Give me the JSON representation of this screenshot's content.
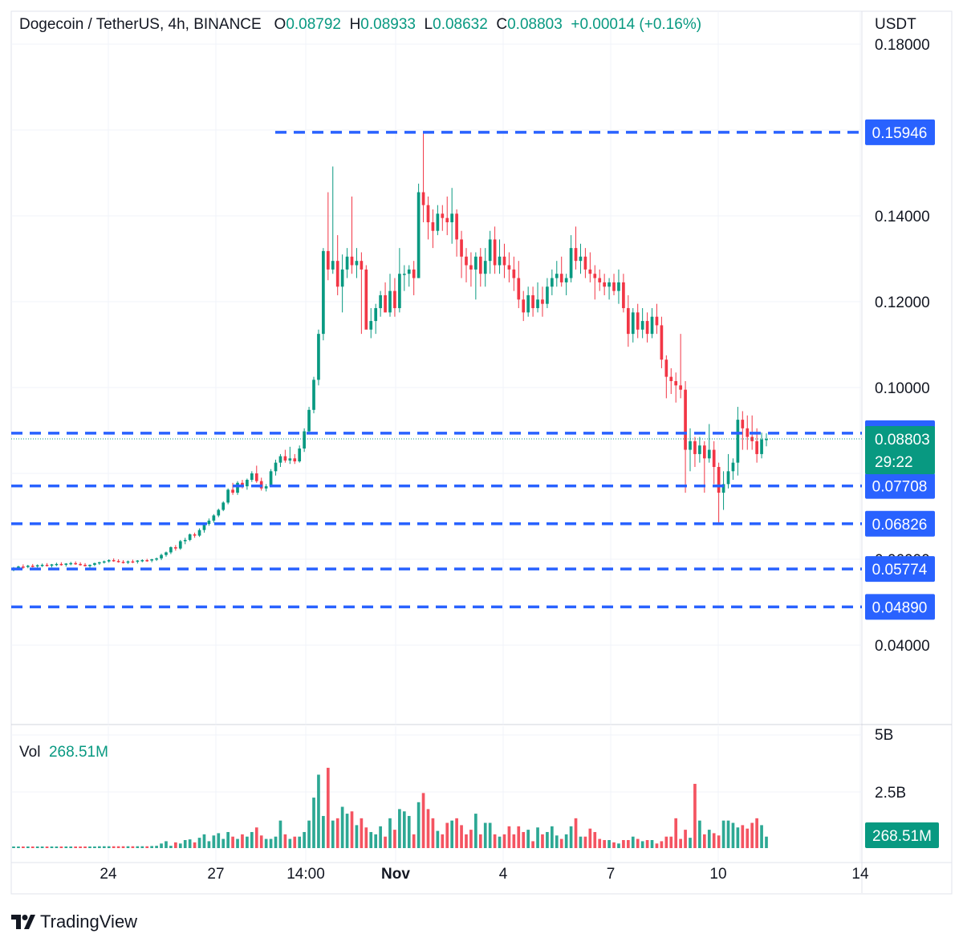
{
  "header": {
    "symbol": "Dogecoin / TetherUS, 4h, BINANCE",
    "o_label": "O",
    "o_value": "0.08792",
    "h_label": "H",
    "h_value": "0.08933",
    "l_label": "L",
    "l_value": "0.08632",
    "c_label": "C",
    "c_value": "0.08803",
    "change": "+0.00014 (+0.16%)"
  },
  "currency": "USDT",
  "volume": {
    "label": "Vol",
    "value": "268.51M",
    "badge": "268.51M"
  },
  "branding": {
    "name": "TradingView"
  },
  "colors": {
    "up": "#089981",
    "down": "#f23645",
    "level_line": "#2962ff",
    "grid": "#f0f3fa"
  },
  "chart_data": {
    "type": "candlestick",
    "interval": "4h",
    "ylim": [
      0.03,
      0.182
    ],
    "y_ticks": [
      "0.18000",
      "0.14000",
      "0.12000",
      "0.10000",
      "0.04000"
    ],
    "x_ticks": [
      "24",
      "27",
      "14:00",
      "Nov",
      "4",
      "7",
      "10",
      "14"
    ],
    "levels": [
      "0.15946",
      "0.08937",
      "0.07708",
      "0.06826",
      "0.05774",
      "0.04890"
    ],
    "current_price": "0.08803",
    "countdown": "29:22",
    "volume_ticks": [
      "5B",
      "2.5B"
    ],
    "volume_max": 5000000000,
    "candles": [
      [
        0.0575,
        0.0582,
        0.0572,
        0.058
      ],
      [
        0.058,
        0.0585,
        0.0577,
        0.0583
      ],
      [
        0.0583,
        0.0588,
        0.0578,
        0.0582
      ],
      [
        0.0582,
        0.0587,
        0.0579,
        0.0585
      ],
      [
        0.0585,
        0.0589,
        0.0581,
        0.0584
      ],
      [
        0.0584,
        0.0588,
        0.058,
        0.0586
      ],
      [
        0.0586,
        0.059,
        0.0582,
        0.0587
      ],
      [
        0.0587,
        0.0591,
        0.0583,
        0.0585
      ],
      [
        0.0585,
        0.0589,
        0.0581,
        0.0588
      ],
      [
        0.0588,
        0.0592,
        0.0584,
        0.0589
      ],
      [
        0.0589,
        0.0593,
        0.0585,
        0.0587
      ],
      [
        0.0587,
        0.0591,
        0.0583,
        0.059
      ],
      [
        0.059,
        0.0594,
        0.0586,
        0.0591
      ],
      [
        0.0591,
        0.0595,
        0.0587,
        0.0589
      ],
      [
        0.0589,
        0.0593,
        0.0585,
        0.0587
      ],
      [
        0.0587,
        0.0591,
        0.0583,
        0.0584
      ],
      [
        0.0584,
        0.0588,
        0.058,
        0.0587
      ],
      [
        0.0587,
        0.0592,
        0.0584,
        0.0591
      ],
      [
        0.0591,
        0.0594,
        0.0587,
        0.0593
      ],
      [
        0.0593,
        0.0597,
        0.059,
        0.0595
      ],
      [
        0.0595,
        0.06,
        0.0592,
        0.0598
      ],
      [
        0.0598,
        0.0602,
        0.0594,
        0.0596
      ],
      [
        0.0596,
        0.06,
        0.0592,
        0.0594
      ],
      [
        0.0594,
        0.0598,
        0.059,
        0.0592
      ],
      [
        0.0592,
        0.0597,
        0.0589,
        0.0595
      ],
      [
        0.0595,
        0.0599,
        0.0591,
        0.0594
      ],
      [
        0.0594,
        0.0598,
        0.059,
        0.0597
      ],
      [
        0.0597,
        0.06,
        0.0593,
        0.0598
      ],
      [
        0.0598,
        0.0601,
        0.0594,
        0.0597
      ],
      [
        0.0597,
        0.0601,
        0.0593,
        0.06
      ],
      [
        0.06,
        0.0604,
        0.0596,
        0.0602
      ],
      [
        0.0602,
        0.0613,
        0.0598,
        0.061
      ],
      [
        0.061,
        0.0618,
        0.0606,
        0.0616
      ],
      [
        0.0616,
        0.063,
        0.0612,
        0.0628
      ],
      [
        0.0628,
        0.0633,
        0.062,
        0.0625
      ],
      [
        0.0625,
        0.0645,
        0.0622,
        0.0642
      ],
      [
        0.0642,
        0.065,
        0.0635,
        0.0645
      ],
      [
        0.0645,
        0.066,
        0.0642,
        0.0658
      ],
      [
        0.0658,
        0.0662,
        0.065,
        0.0655
      ],
      [
        0.0655,
        0.0672,
        0.0652,
        0.0668
      ],
      [
        0.0668,
        0.0685,
        0.0662,
        0.0682
      ],
      [
        0.0682,
        0.0695,
        0.0678,
        0.069
      ],
      [
        0.069,
        0.0705,
        0.0685,
        0.0702
      ],
      [
        0.0702,
        0.0718,
        0.0698,
        0.0715
      ],
      [
        0.0715,
        0.0735,
        0.0712,
        0.0732
      ],
      [
        0.0732,
        0.0765,
        0.0728,
        0.0762
      ],
      [
        0.0762,
        0.0778,
        0.075,
        0.0755
      ],
      [
        0.0755,
        0.0782,
        0.075,
        0.0778
      ],
      [
        0.0778,
        0.0785,
        0.0765,
        0.077
      ],
      [
        0.077,
        0.0788,
        0.0762,
        0.0785
      ],
      [
        0.0785,
        0.0805,
        0.078,
        0.08
      ],
      [
        0.08,
        0.0818,
        0.0778,
        0.0782
      ],
      [
        0.0782,
        0.079,
        0.076,
        0.0765
      ],
      [
        0.0765,
        0.0775,
        0.0758,
        0.077
      ],
      [
        0.077,
        0.081,
        0.0768,
        0.0805
      ],
      [
        0.0805,
        0.0832,
        0.0795,
        0.0825
      ],
      [
        0.0825,
        0.0845,
        0.0815,
        0.084
      ],
      [
        0.084,
        0.0855,
        0.0825,
        0.083
      ],
      [
        0.083,
        0.0862,
        0.0822,
        0.0835
      ],
      [
        0.0835,
        0.0845,
        0.0822,
        0.0828
      ],
      [
        0.0828,
        0.0865,
        0.0825,
        0.0858
      ],
      [
        0.0858,
        0.0905,
        0.085,
        0.0898
      ],
      [
        0.0898,
        0.0955,
        0.0895,
        0.0948
      ],
      [
        0.0948,
        0.1025,
        0.094,
        0.1018
      ],
      [
        0.1018,
        0.1135,
        0.1005,
        0.1125
      ],
      [
        0.1125,
        0.1325,
        0.111,
        0.1318
      ],
      [
        0.1318,
        0.1455,
        0.125,
        0.1275
      ],
      [
        0.1275,
        0.1515,
        0.1265,
        0.1295
      ],
      [
        0.1295,
        0.1355,
        0.1215,
        0.1235
      ],
      [
        0.1235,
        0.131,
        0.1175,
        0.1275
      ],
      [
        0.1275,
        0.1325,
        0.1255,
        0.1305
      ],
      [
        0.1305,
        0.1445,
        0.1265,
        0.1285
      ],
      [
        0.1285,
        0.1325,
        0.1255,
        0.1295
      ],
      [
        0.1295,
        0.1315,
        0.1125,
        0.1275
      ],
      [
        0.1275,
        0.1285,
        0.1145,
        0.1135
      ],
      [
        0.1135,
        0.1185,
        0.1115,
        0.1155
      ],
      [
        0.1155,
        0.1195,
        0.1125,
        0.1185
      ],
      [
        0.1185,
        0.1225,
        0.1165,
        0.1215
      ],
      [
        0.1215,
        0.1245,
        0.1175,
        0.1175
      ],
      [
        0.1175,
        0.1265,
        0.1165,
        0.1225
      ],
      [
        0.1225,
        0.1255,
        0.1165,
        0.1185
      ],
      [
        0.1185,
        0.1325,
        0.1175,
        0.1265
      ],
      [
        0.1265,
        0.1285,
        0.1225,
        0.1265
      ],
      [
        0.1265,
        0.1285,
        0.1235,
        0.1275
      ],
      [
        0.1275,
        0.1295,
        0.1215,
        0.1255
      ],
      [
        0.1255,
        0.1475,
        0.1255,
        0.1455
      ],
      [
        0.1455,
        0.1595,
        0.1385,
        0.1425
      ],
      [
        0.1425,
        0.1445,
        0.1345,
        0.1385
      ],
      [
        0.1385,
        0.1415,
        0.1325,
        0.1365
      ],
      [
        0.1365,
        0.1425,
        0.1355,
        0.1405
      ],
      [
        0.1405,
        0.1425,
        0.1365,
        0.1395
      ],
      [
        0.1395,
        0.1445,
        0.1355,
        0.1385
      ],
      [
        0.1385,
        0.1465,
        0.1335,
        0.1405
      ],
      [
        0.1405,
        0.1415,
        0.1305,
        0.1345
      ],
      [
        0.1345,
        0.1365,
        0.1255,
        0.1305
      ],
      [
        0.1305,
        0.1325,
        0.1245,
        0.1285
      ],
      [
        0.1285,
        0.1315,
        0.1235,
        0.1275
      ],
      [
        0.1275,
        0.1315,
        0.1205,
        0.1305
      ],
      [
        0.1305,
        0.1325,
        0.1235,
        0.1265
      ],
      [
        0.1265,
        0.1325,
        0.1235,
        0.1295
      ],
      [
        0.1295,
        0.1365,
        0.1265,
        0.1345
      ],
      [
        0.1345,
        0.1375,
        0.1265,
        0.1285
      ],
      [
        0.1285,
        0.1345,
        0.1265,
        0.1305
      ],
      [
        0.1305,
        0.1335,
        0.1255,
        0.1285
      ],
      [
        0.1285,
        0.1315,
        0.1245,
        0.1275
      ],
      [
        0.1275,
        0.1305,
        0.1225,
        0.1255
      ],
      [
        0.1255,
        0.1295,
        0.1185,
        0.1205
      ],
      [
        0.1205,
        0.1225,
        0.1155,
        0.1175
      ],
      [
        0.1175,
        0.1235,
        0.1165,
        0.1215
      ],
      [
        0.1215,
        0.1235,
        0.1165,
        0.1185
      ],
      [
        0.1185,
        0.1245,
        0.1175,
        0.1205
      ],
      [
        0.1205,
        0.1235,
        0.1165,
        0.1195
      ],
      [
        0.1195,
        0.1255,
        0.1185,
        0.1235
      ],
      [
        0.1235,
        0.1275,
        0.1215,
        0.1255
      ],
      [
        0.1255,
        0.1295,
        0.1235,
        0.1265
      ],
      [
        0.1265,
        0.1305,
        0.1235,
        0.1245
      ],
      [
        0.1245,
        0.1265,
        0.1215,
        0.1255
      ],
      [
        0.1255,
        0.1355,
        0.1245,
        0.1325
      ],
      [
        0.1325,
        0.1375,
        0.1275,
        0.1295
      ],
      [
        0.1295,
        0.1335,
        0.1265,
        0.1305
      ],
      [
        0.1305,
        0.1325,
        0.1255,
        0.1275
      ],
      [
        0.1275,
        0.1315,
        0.1245,
        0.1265
      ],
      [
        0.1265,
        0.1285,
        0.1205,
        0.1255
      ],
      [
        0.1255,
        0.1275,
        0.1225,
        0.1245
      ],
      [
        0.1245,
        0.1265,
        0.1215,
        0.1235
      ],
      [
        0.1235,
        0.1255,
        0.1205,
        0.1245
      ],
      [
        0.1245,
        0.1265,
        0.1215,
        0.1225
      ],
      [
        0.1225,
        0.1275,
        0.1195,
        0.1245
      ],
      [
        0.1245,
        0.1265,
        0.1175,
        0.1185
      ],
      [
        0.1185,
        0.1215,
        0.1095,
        0.1125
      ],
      [
        0.1125,
        0.1185,
        0.1105,
        0.1175
      ],
      [
        0.1175,
        0.1195,
        0.1115,
        0.1135
      ],
      [
        0.1135,
        0.1185,
        0.1115,
        0.1155
      ],
      [
        0.1155,
        0.1175,
        0.1105,
        0.1125
      ],
      [
        0.1125,
        0.1185,
        0.1115,
        0.1165
      ],
      [
        0.1165,
        0.1195,
        0.1125,
        0.1145
      ],
      [
        0.1145,
        0.1165,
        0.1045,
        0.1065
      ],
      [
        0.1065,
        0.1075,
        0.0975,
        0.1025
      ],
      [
        0.1025,
        0.1045,
        0.0985,
        0.1015
      ],
      [
        0.1015,
        0.1035,
        0.0965,
        0.1005
      ],
      [
        0.1005,
        0.1125,
        0.0975,
        0.0995
      ],
      [
        0.0995,
        0.1015,
        0.0755,
        0.0855
      ],
      [
        0.0855,
        0.0905,
        0.0805,
        0.0875
      ],
      [
        0.0875,
        0.0885,
        0.0815,
        0.0845
      ],
      [
        0.0845,
        0.0885,
        0.0825,
        0.0865
      ],
      [
        0.0865,
        0.0875,
        0.0755,
        0.0835
      ],
      [
        0.0835,
        0.0915,
        0.0825,
        0.0855
      ],
      [
        0.0855,
        0.0875,
        0.0775,
        0.0815
      ],
      [
        0.0815,
        0.0825,
        0.0685,
        0.0755
      ],
      [
        0.0755,
        0.0805,
        0.0715,
        0.0775
      ],
      [
        0.0775,
        0.0845,
        0.0765,
        0.0805
      ],
      [
        0.0805,
        0.0835,
        0.0785,
        0.0825
      ],
      [
        0.0825,
        0.0955,
        0.0795,
        0.0925
      ],
      [
        0.0925,
        0.0945,
        0.0855,
        0.0905
      ],
      [
        0.0905,
        0.0935,
        0.0855,
        0.0885
      ],
      [
        0.0885,
        0.0935,
        0.0855,
        0.0875
      ],
      [
        0.0875,
        0.0905,
        0.0825,
        0.0845
      ],
      [
        0.0845,
        0.0895,
        0.0835,
        0.0879
      ],
      [
        0.0879,
        0.08933,
        0.08632,
        0.08803
      ]
    ],
    "volumes": [
      70,
      70,
      70,
      70,
      70,
      70,
      70,
      70,
      70,
      70,
      70,
      70,
      70,
      70,
      70,
      70,
      70,
      70,
      80,
      80,
      80,
      80,
      80,
      80,
      80,
      80,
      80,
      80,
      80,
      90,
      100,
      200,
      300,
      100,
      250,
      200,
      350,
      380,
      250,
      450,
      600,
      300,
      550,
      650,
      400,
      700,
      500,
      400,
      600,
      500,
      700,
      900,
      550,
      400,
      400,
      500,
      1200,
      600,
      400,
      500,
      500,
      700,
      1200,
      2200,
      3200,
      1400,
      3500,
      1200,
      1300,
      1800,
      1500,
      1600,
      1000,
      1300,
      900,
      700,
      600,
      950,
      500,
      1300,
      800,
      1700,
      1600,
      1400,
      600,
      2000,
      2400,
      1700,
      1300,
      750,
      600,
      1100,
      1200,
      1300,
      1000,
      600,
      800,
      1500,
      600,
      1100,
      1100,
      600,
      500,
      600,
      950,
      600,
      950,
      700,
      800,
      300,
      900,
      600,
      700,
      950,
      550,
      400,
      600,
      950,
      1300,
      500,
      500,
      850,
      700,
      400,
      350,
      350,
      250,
      200,
      350,
      350,
      500,
      400,
      300,
      350,
      350,
      200,
      300,
      500,
      500,
      1300,
      400,
      800,
      450,
      2800,
      1200,
      600,
      800,
      650,
      550,
      1200,
      1200,
      1100,
      900,
      1000,
      850,
      1100,
      1300,
      1000,
      500,
      700,
      600,
      300
    ]
  }
}
